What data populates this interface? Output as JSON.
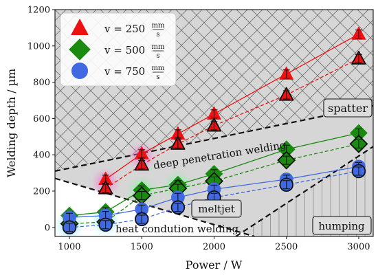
{
  "chart_data": {
    "type": "line",
    "xlabel": "Power / W",
    "ylabel": "Welding depth / µm",
    "xlim": [
      900,
      3100
    ],
    "ylim": [
      -50,
      1200
    ],
    "xticks": [
      "1000",
      "1500",
      "2000",
      "2500",
      "3000"
    ],
    "yticks": [
      "0",
      "200",
      "400",
      "600",
      "800",
      "1000",
      "1200"
    ],
    "x": [
      1000,
      1250,
      1500,
      1750,
      2000,
      2500,
      3000
    ],
    "legend": {
      "placement": "top-left",
      "entries": [
        {
          "prefix": "v = 250",
          "unit_num": "mm",
          "unit_den": "s",
          "color": "#ee1111",
          "marker": "triangle-icon"
        },
        {
          "prefix": "v = 500",
          "unit_num": "mm",
          "unit_den": "s",
          "color": "#1a8a10",
          "marker": "diamond-icon"
        },
        {
          "prefix": "v = 750",
          "unit_num": "mm",
          "unit_den": "s",
          "color": "#4169e1",
          "marker": "circle-icon"
        }
      ]
    },
    "series": [
      {
        "legend": "v = 250 mm/s",
        "color": "#ee1111",
        "marker": "triangle",
        "solid": [
          null,
          265,
          405,
          515,
          625,
          845,
          1065
        ],
        "dashed": [
          null,
          215,
          345,
          460,
          560,
          730,
          930
        ]
      },
      {
        "legend": "v = 500 mm/s",
        "color": "#1a8a10",
        "marker": "diamond",
        "solid": [
          65,
          85,
          205,
          235,
          295,
          430,
          520
        ],
        "dashed": [
          20,
          30,
          175,
          215,
          255,
          370,
          460
        ]
      },
      {
        "legend": "v = 750 mm/s",
        "color": "#4169e1",
        "marker": "circle",
        "solid": [
          55,
          65,
          100,
          165,
          210,
          265,
          335
        ],
        "dashed": [
          0,
          15,
          45,
          110,
          165,
          235,
          310
        ]
      }
    ],
    "regions": [
      {
        "label": "spatter",
        "pattern": "crosshatch"
      },
      {
        "label": "deep penetration welding",
        "pattern": "plain"
      },
      {
        "label": "meltjet",
        "pattern": "plain"
      },
      {
        "label": "heat condution welding",
        "pattern": "plain"
      },
      {
        "label": "humping",
        "pattern": "vertical-hatch"
      }
    ],
    "boundaries": [
      {
        "from": [
          900,
          310
        ],
        "to": [
          3100,
          670
        ]
      },
      {
        "from": [
          900,
          270
        ],
        "to": [
          2280,
          -50
        ]
      },
      {
        "from": [
          2150,
          -50
        ],
        "to": [
          3100,
          445
        ]
      }
    ]
  }
}
